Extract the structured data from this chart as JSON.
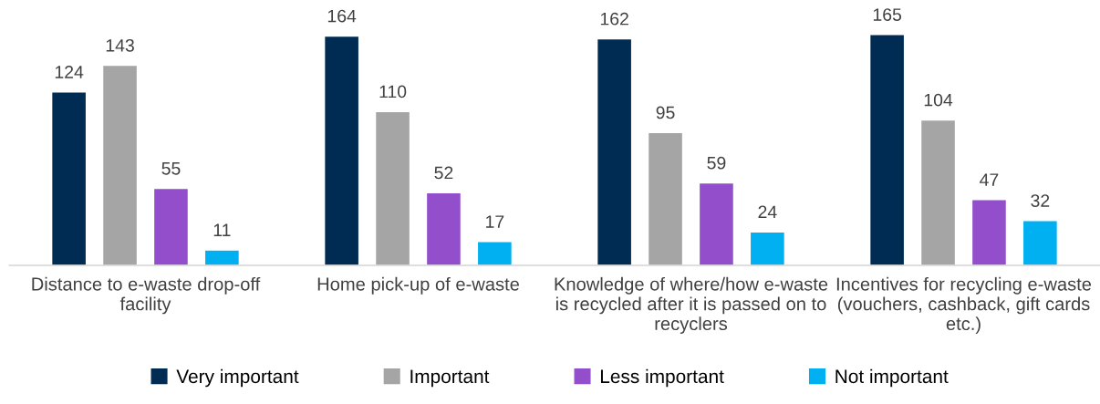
{
  "chart_data": {
    "type": "bar",
    "categories": [
      "Distance to e-waste drop-off facility",
      "Home pick-up of e-waste",
      "Knowledge of where/how e-waste is recycled after it is passed on to recyclers",
      "Incentives for recycling e-waste (vouchers, cashback, gift cards etc.)"
    ],
    "series": [
      {
        "name": "Very important",
        "color": "#002b53",
        "values": [
          124,
          164,
          162,
          165
        ]
      },
      {
        "name": "Important",
        "color": "#a5a5a5",
        "values": [
          143,
          110,
          95,
          104
        ]
      },
      {
        "name": "Less important",
        "color": "#934fcb",
        "values": [
          55,
          52,
          59,
          47
        ]
      },
      {
        "name": "Not important",
        "color": "#00b0f0",
        "values": [
          11,
          17,
          24,
          32
        ]
      }
    ],
    "data_labels": true,
    "legend": "bottom",
    "grid": false
  }
}
